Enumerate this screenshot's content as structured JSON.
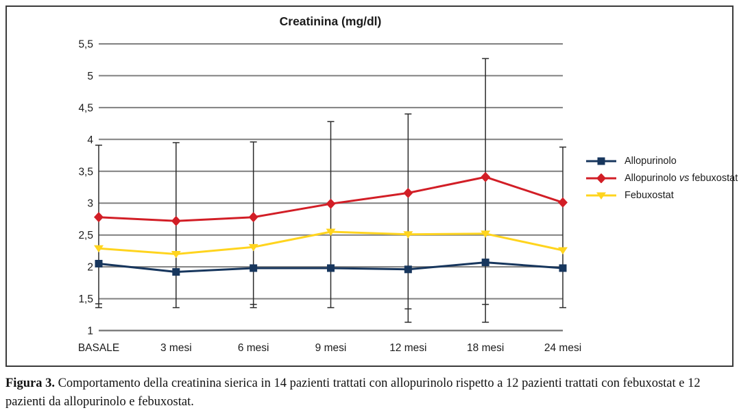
{
  "figure": {
    "caption_label": "Figura 3.",
    "caption_text": "Comportamento della creatinina sierica in 14 pazienti trattati con allopurinolo rispetto a 12 pazienti trattati con febuxostat e 12 pazienti da allopurinolo e febuxostat."
  },
  "chart_data": {
    "type": "line",
    "title": "Creatinina (mg/dl)",
    "xlabel": "",
    "ylabel": "",
    "categories": [
      "BASALE",
      "3 mesi",
      "6 mesi",
      "9 mesi",
      "12 mesi",
      "18 mesi",
      "24 mesi"
    ],
    "ylim": [
      1,
      5.5
    ],
    "y_tick_values": [
      5.5,
      5,
      4.5,
      4,
      3.5,
      3,
      2.5,
      2,
      1.5,
      1
    ],
    "y_tick_labels": [
      "5,5",
      "5",
      "4,5",
      "4",
      "3,5",
      "3",
      "2,5",
      "2",
      "1,5",
      "1"
    ],
    "grid": "horizontal",
    "legend_position": "right",
    "series": [
      {
        "name": "Allopurinolo",
        "marker": "square",
        "color": "#17365d",
        "values": [
          2.05,
          1.92,
          1.98,
          1.98,
          1.96,
          2.07,
          1.98
        ],
        "label_parts": [
          {
            "t": "Allopurinolo",
            "italic": false
          }
        ]
      },
      {
        "name": "Allopurinolo vs febuxostat",
        "marker": "diamond",
        "color": "#d21e26",
        "values": [
          2.78,
          2.72,
          2.78,
          2.99,
          3.16,
          3.41,
          3.01
        ],
        "label_parts": [
          {
            "t": "Allopurinolo ",
            "italic": false
          },
          {
            "t": "vs",
            "italic": true
          },
          {
            "t": " febuxostat",
            "italic": false
          }
        ]
      },
      {
        "name": "Febuxostat",
        "marker": "triangle-down",
        "color": "#ffd41e",
        "values": [
          2.29,
          2.2,
          2.31,
          2.55,
          2.51,
          2.52,
          2.26
        ],
        "label_parts": [
          {
            "t": "Febuxostat",
            "italic": false
          }
        ]
      }
    ],
    "error_bars": [
      {
        "category": "BASALE",
        "high": 3.91,
        "low_caps": [
          1.42,
          1.36
        ]
      },
      {
        "category": "3 mesi",
        "high": 3.95,
        "low_caps": [
          1.36
        ]
      },
      {
        "category": "6 mesi",
        "high": 3.96,
        "low_caps": [
          1.41,
          1.36
        ]
      },
      {
        "category": "9 mesi",
        "high": 4.28,
        "low_caps": [
          1.36
        ]
      },
      {
        "category": "12 mesi",
        "high": 4.4,
        "low_caps": [
          1.34,
          1.13
        ]
      },
      {
        "category": "18 mesi",
        "high": 5.27,
        "low_caps": [
          1.41,
          1.13
        ]
      },
      {
        "category": "24 mesi",
        "high": 3.88,
        "low_caps": [
          1.36
        ]
      }
    ],
    "colors": {
      "grid": "#7f7f7f",
      "error_bar": "#2b2b2b",
      "text": "#1a1a1a"
    }
  }
}
